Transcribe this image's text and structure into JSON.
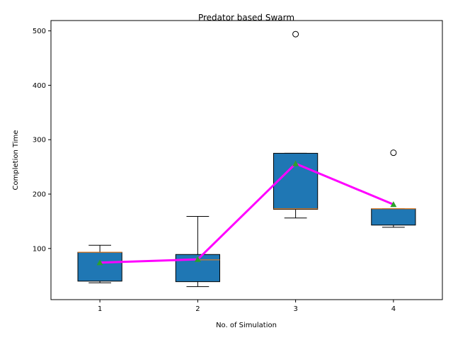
{
  "chart_data": {
    "type": "box",
    "title": "Predator based Swarm",
    "xlabel": "No. of Simulation",
    "ylabel": "Completion Time",
    "categories": [
      "1",
      "2",
      "3",
      "4"
    ],
    "boxes": [
      {
        "whislo": 37,
        "q1": 40,
        "med": 93,
        "q3": 93,
        "whishi": 106,
        "mean": 74,
        "fliers": []
      },
      {
        "whislo": 30,
        "q1": 39,
        "med": 79,
        "q3": 89,
        "whishi": 159,
        "mean": 80,
        "fliers": []
      },
      {
        "whislo": 156,
        "q1": 172,
        "med": 173,
        "q3": 275,
        "whishi": 275,
        "mean": 256,
        "fliers": [
          494
        ]
      },
      {
        "whislo": 139,
        "q1": 143,
        "med": 173,
        "q3": 173,
        "whishi": 173,
        "mean": 181,
        "fliers": [
          276
        ]
      }
    ],
    "mean_line": {
      "values": [
        74,
        80,
        256,
        181
      ],
      "color": "#ff00ff"
    },
    "yticks": [
      100,
      200,
      300,
      400,
      500
    ],
    "ylim": [
      6,
      519
    ],
    "xlim": [
      0.5,
      4.5
    ],
    "colors": {
      "box_fill": "#1f77b4",
      "median": "#ff7f0e",
      "mean_marker": "#2ca02c",
      "mean_line": "#ff00ff"
    }
  }
}
